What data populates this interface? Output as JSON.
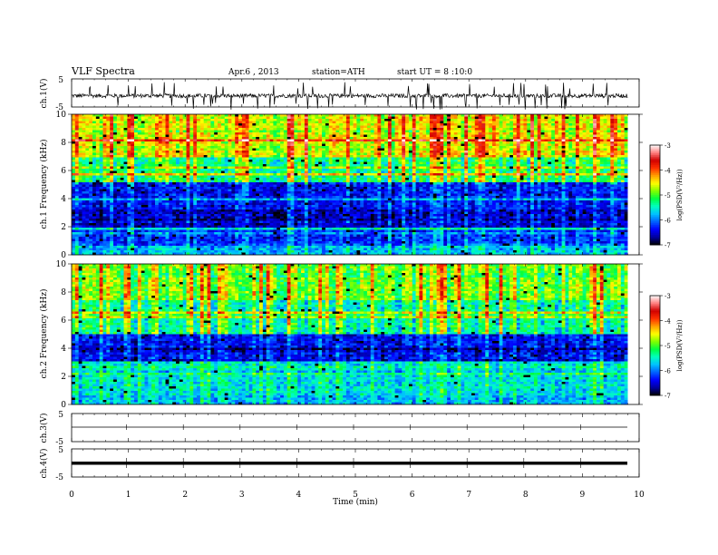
{
  "header": {
    "title": "VLF Spectra",
    "date": "Apr.6 , 2013",
    "station": "station=ATH",
    "start_ut": "start UT = 8 :10:0"
  },
  "chart_data": [
    {
      "type": "line",
      "panel": "ch1_waveform",
      "ylabel": "ch.1(V)",
      "ylim": [
        -5,
        5
      ],
      "y_ticks": [
        "5",
        "-5"
      ],
      "note": "continuous noisy waveform centred near -1 V with frequent impulsive spikes"
    },
    {
      "type": "heatmap",
      "panel": "ch1_spectrogram",
      "ylabel": "ch.1 Frequency (kHz)",
      "ylim": [
        0,
        10
      ],
      "y_ticks": [
        "0",
        "2",
        "4",
        "6",
        "8",
        "10"
      ],
      "x_range_min": [
        0,
        9.8
      ],
      "bands": [
        {
          "from_khz": 0,
          "to_khz": 0.6,
          "level": -5.8
        },
        {
          "from_khz": 0.6,
          "to_khz": 2.0,
          "level": -6.3
        },
        {
          "from_khz": 2.0,
          "to_khz": 3.2,
          "level": -6.6
        },
        {
          "from_khz": 3.2,
          "to_khz": 5.2,
          "level": -6.4
        },
        {
          "from_khz": 5.2,
          "to_khz": 7.0,
          "level": -5.3
        },
        {
          "from_khz": 7.0,
          "to_khz": 10,
          "level": -4.6
        }
      ]
    },
    {
      "type": "heatmap",
      "panel": "ch2_spectrogram",
      "ylabel": "ch.2 Frequency (kHz)",
      "ylim": [
        0,
        10
      ],
      "y_ticks": [
        "0",
        "2",
        "4",
        "6",
        "8",
        "10"
      ],
      "x_range_min": [
        0,
        9.8
      ],
      "bands": [
        {
          "from_khz": 0,
          "to_khz": 0.6,
          "level": -5.8
        },
        {
          "from_khz": 0.6,
          "to_khz": 3.0,
          "level": -5.6
        },
        {
          "from_khz": 3.0,
          "to_khz": 5.0,
          "level": -6.4
        },
        {
          "from_khz": 5.0,
          "to_khz": 7.5,
          "level": -5.4
        },
        {
          "from_khz": 7.5,
          "to_khz": 10,
          "level": -4.9
        }
      ]
    },
    {
      "type": "line",
      "panel": "ch3_waveform",
      "ylabel": "ch.3(V)",
      "ylim": [
        -5,
        5
      ],
      "y_ticks": [
        "5",
        "-5"
      ],
      "value": 0
    },
    {
      "type": "line",
      "panel": "ch4_waveform",
      "ylabel": "ch.4(V)",
      "ylim": [
        -5,
        5
      ],
      "y_ticks": [
        "5",
        "-5"
      ],
      "value": 0
    }
  ],
  "colorbars": [
    {
      "label": "log(PSD(V²/Hz))",
      "range": [
        -7,
        -3
      ],
      "ticks": [
        "-3",
        "-4",
        "-5",
        "-6",
        "-7"
      ]
    },
    {
      "label": "log(PSD(V²/Hz))",
      "range": [
        -7,
        -3
      ],
      "ticks": [
        "-3",
        "-4",
        "-5",
        "-6",
        "-7"
      ]
    }
  ],
  "x_axis": {
    "label": "Time (min)",
    "range": [
      0,
      10
    ],
    "ticks": [
      "0",
      "1",
      "2",
      "3",
      "4",
      "5",
      "6",
      "7",
      "8",
      "9",
      "10"
    ]
  },
  "colors": {
    "colormap": [
      "#000000",
      "#0000a0",
      "#0000ff",
      "#0060ff",
      "#00c0ff",
      "#00ffc0",
      "#00ff40",
      "#80ff00",
      "#ffff00",
      "#ffa000",
      "#ff3000",
      "#d00000",
      "#ff8080",
      "#ffffff"
    ]
  }
}
